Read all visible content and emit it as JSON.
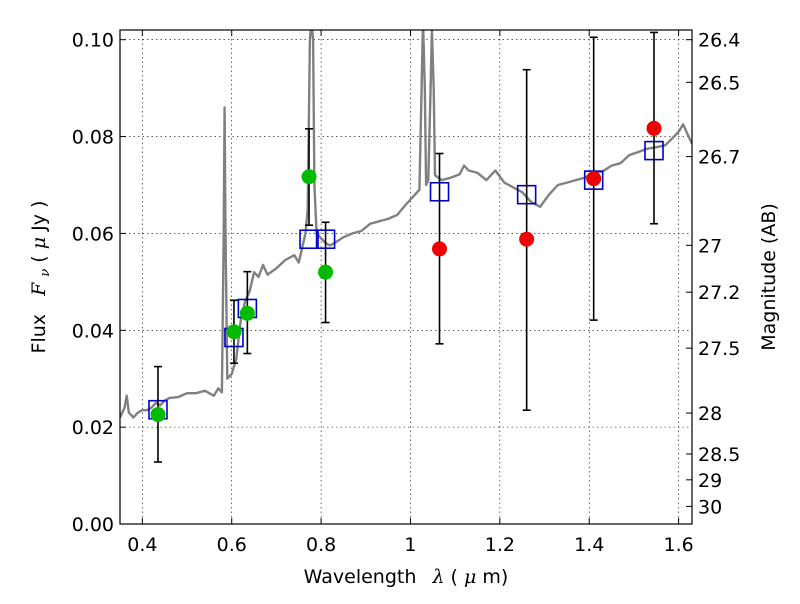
{
  "chart_data": {
    "type": "scatter",
    "xlabel_prefix": "Wavelength",
    "xlabel_symbol": "λ",
    "xlabel_unit_open": " (",
    "xlabel_unit_mu": "μ",
    "xlabel_unit_rest": "m)",
    "ylabel_prefix": "Flux",
    "ylabel_symbol_main": "F",
    "ylabel_symbol_sub": "ν",
    "ylabel_unit_open": " ( ",
    "ylabel_unit_mu": "μ",
    "ylabel_unit_rest": "Jy )",
    "y2label": "Magnitude (AB)",
    "xlim": [
      0.35,
      1.63
    ],
    "ylim": [
      0.0,
      0.102
    ],
    "grid": true,
    "xticks": [
      {
        "v": 0.4,
        "label": "0.4"
      },
      {
        "v": 0.6,
        "label": "0.6"
      },
      {
        "v": 0.8,
        "label": "0.8"
      },
      {
        "v": 1.0,
        "label": "1"
      },
      {
        "v": 1.2,
        "label": "1.2"
      },
      {
        "v": 1.4,
        "label": "1.4"
      },
      {
        "v": 1.6,
        "label": "1.6"
      }
    ],
    "yticks": [
      {
        "v": 0.0,
        "label": "0.00"
      },
      {
        "v": 0.02,
        "label": "0.02"
      },
      {
        "v": 0.04,
        "label": "0.04"
      },
      {
        "v": 0.06,
        "label": "0.06"
      },
      {
        "v": 0.08,
        "label": "0.08"
      },
      {
        "v": 0.1,
        "label": "0.10"
      }
    ],
    "magnitude_ticks": [
      {
        "mag": 26.4,
        "label": "26.4"
      },
      {
        "mag": 26.5,
        "label": "26.5"
      },
      {
        "mag": 26.7,
        "label": "26.7"
      },
      {
        "mag": 27.0,
        "label": "27"
      },
      {
        "mag": 27.2,
        "label": "27.2"
      },
      {
        "mag": 27.5,
        "label": "27.5"
      },
      {
        "mag": 28.0,
        "label": "28"
      },
      {
        "mag": 28.5,
        "label": "28.5"
      },
      {
        "mag": 29.0,
        "label": "29"
      },
      {
        "mag": 30.0,
        "label": "30"
      }
    ],
    "series": [
      {
        "kind": "model_spectrum",
        "color": "#808080",
        "points": [
          [
            0.35,
            0.022
          ],
          [
            0.36,
            0.024
          ],
          [
            0.365,
            0.0265
          ],
          [
            0.37,
            0.023
          ],
          [
            0.38,
            0.022
          ],
          [
            0.39,
            0.023
          ],
          [
            0.4,
            0.0235
          ],
          [
            0.41,
            0.0235
          ],
          [
            0.42,
            0.024
          ],
          [
            0.43,
            0.025
          ],
          [
            0.44,
            0.0245
          ],
          [
            0.45,
            0.0255
          ],
          [
            0.46,
            0.026
          ],
          [
            0.48,
            0.0262
          ],
          [
            0.5,
            0.027
          ],
          [
            0.52,
            0.027
          ],
          [
            0.54,
            0.0275
          ],
          [
            0.56,
            0.0265
          ],
          [
            0.57,
            0.028
          ],
          [
            0.578,
            0.0272
          ],
          [
            0.582,
            0.06
          ],
          [
            0.584,
            0.086
          ],
          [
            0.586,
            0.06
          ],
          [
            0.59,
            0.03
          ],
          [
            0.6,
            0.031
          ],
          [
            0.61,
            0.034
          ],
          [
            0.62,
            0.042
          ],
          [
            0.63,
            0.046
          ],
          [
            0.64,
            0.048
          ],
          [
            0.65,
            0.052
          ],
          [
            0.66,
            0.051
          ],
          [
            0.67,
            0.0535
          ],
          [
            0.68,
            0.0515
          ],
          [
            0.7,
            0.0528
          ],
          [
            0.72,
            0.0545
          ],
          [
            0.74,
            0.0555
          ],
          [
            0.75,
            0.054
          ],
          [
            0.76,
            0.058
          ],
          [
            0.765,
            0.06
          ],
          [
            0.77,
            0.065
          ],
          [
            0.775,
            0.1
          ],
          [
            0.778,
            0.104
          ],
          [
            0.782,
            0.1
          ],
          [
            0.785,
            0.07
          ],
          [
            0.79,
            0.06
          ],
          [
            0.8,
            0.059
          ],
          [
            0.81,
            0.058
          ],
          [
            0.82,
            0.0575
          ],
          [
            0.83,
            0.058
          ],
          [
            0.85,
            0.0592
          ],
          [
            0.87,
            0.06
          ],
          [
            0.89,
            0.0605
          ],
          [
            0.91,
            0.062
          ],
          [
            0.93,
            0.0625
          ],
          [
            0.95,
            0.063
          ],
          [
            0.97,
            0.0638
          ],
          [
            0.99,
            0.066
          ],
          [
            1.0,
            0.067
          ],
          [
            1.01,
            0.068
          ],
          [
            1.02,
            0.069
          ],
          [
            1.025,
            0.09
          ],
          [
            1.028,
            0.104
          ],
          [
            1.032,
            0.09
          ],
          [
            1.035,
            0.07
          ],
          [
            1.04,
            0.071
          ],
          [
            1.045,
            0.09
          ],
          [
            1.048,
            0.102
          ],
          [
            1.052,
            0.09
          ],
          [
            1.055,
            0.072
          ],
          [
            1.07,
            0.071
          ],
          [
            1.09,
            0.0715
          ],
          [
            1.11,
            0.0722
          ],
          [
            1.12,
            0.074
          ],
          [
            1.13,
            0.073
          ],
          [
            1.15,
            0.0725
          ],
          [
            1.17,
            0.071
          ],
          [
            1.19,
            0.073
          ],
          [
            1.21,
            0.0705
          ],
          [
            1.23,
            0.0695
          ],
          [
            1.25,
            0.0685
          ],
          [
            1.27,
            0.0665
          ],
          [
            1.29,
            0.0655
          ],
          [
            1.31,
            0.068
          ],
          [
            1.33,
            0.07
          ],
          [
            1.35,
            0.0705
          ],
          [
            1.37,
            0.071
          ],
          [
            1.39,
            0.0715
          ],
          [
            1.41,
            0.0725
          ],
          [
            1.43,
            0.0728
          ],
          [
            1.45,
            0.074
          ],
          [
            1.47,
            0.0745
          ],
          [
            1.49,
            0.0762
          ],
          [
            1.51,
            0.0768
          ],
          [
            1.53,
            0.0775
          ],
          [
            1.55,
            0.0778
          ],
          [
            1.57,
            0.0782
          ],
          [
            1.59,
            0.08
          ],
          [
            1.6,
            0.081
          ],
          [
            1.61,
            0.0825
          ],
          [
            1.62,
            0.0805
          ],
          [
            1.63,
            0.0785
          ]
        ]
      },
      {
        "kind": "model_bandpass_flux",
        "marker": "open-square",
        "color": "#0000cc",
        "points": [
          [
            0.435,
            0.0236
          ],
          [
            0.605,
            0.0385
          ],
          [
            0.635,
            0.0445
          ],
          [
            0.773,
            0.0588
          ],
          [
            0.81,
            0.0588
          ],
          [
            1.065,
            0.0686
          ],
          [
            1.26,
            0.068
          ],
          [
            1.41,
            0.071
          ],
          [
            1.545,
            0.0771
          ]
        ]
      },
      {
        "kind": "detection",
        "marker": "filled-circle",
        "color": "#00bb00",
        "points": [
          {
            "x": 0.435,
            "y": 0.0226,
            "err_lo": 0.0128,
            "err_hi": 0.0325
          },
          {
            "x": 0.605,
            "y": 0.0397,
            "err_lo": 0.0332,
            "err_hi": 0.0462
          },
          {
            "x": 0.635,
            "y": 0.0435,
            "err_lo": 0.0352,
            "err_hi": 0.0521
          },
          {
            "x": 0.773,
            "y": 0.0717,
            "err_lo": 0.0617,
            "err_hi": 0.0816
          },
          {
            "x": 0.81,
            "y": 0.052,
            "err_lo": 0.0416,
            "err_hi": 0.0623
          }
        ]
      },
      {
        "kind": "nondetection",
        "marker": "filled-circle",
        "color": "#ee0000",
        "points": [
          {
            "x": 1.065,
            "y": 0.0568,
            "err_lo": 0.0372,
            "err_hi": 0.0765
          },
          {
            "x": 1.26,
            "y": 0.0588,
            "err_lo": 0.0235,
            "err_hi": 0.0938
          },
          {
            "x": 1.41,
            "y": 0.0713,
            "err_lo": 0.0421,
            "err_hi": 0.1005
          },
          {
            "x": 1.545,
            "y": 0.0817,
            "err_lo": 0.062,
            "err_hi": 0.1015
          }
        ]
      }
    ]
  }
}
